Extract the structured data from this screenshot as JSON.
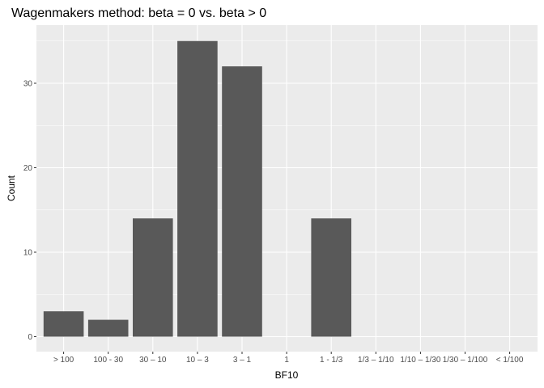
{
  "chart_data": {
    "type": "bar",
    "title": "Wagenmakers method: beta = 0 vs. beta > 0",
    "xlabel": "BF10",
    "ylabel": "Count",
    "categories": [
      "> 100",
      "100 - 30",
      "30 – 10",
      "10 – 3",
      "3 – 1",
      "1",
      "1 - 1/3",
      "1/3 – 1/10",
      "1/10 – 1/30",
      "1/30 – 1/100",
      "< 1/100"
    ],
    "values": [
      3,
      2,
      14,
      35,
      32,
      0,
      14,
      0,
      0,
      0,
      0
    ],
    "ylim": [
      0,
      36.8
    ],
    "yticks": [
      0,
      10,
      20,
      30
    ],
    "grid": true,
    "legend": "none",
    "colors": {
      "panel": "#ebebeb",
      "grid_major": "#ffffff",
      "bar": "#595959"
    }
  }
}
